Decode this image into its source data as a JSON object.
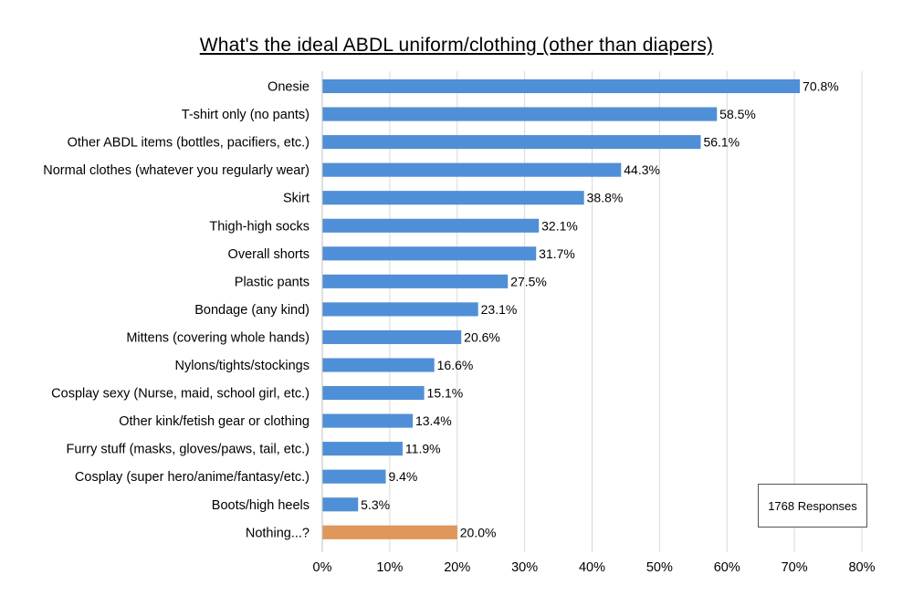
{
  "chart_data": {
    "type": "bar",
    "orientation": "horizontal",
    "title": "What's the ideal ABDL uniform/clothing (other than diapers)",
    "categories": [
      "Onesie",
      "T-shirt only (no pants)",
      "Other ABDL items (bottles, pacifiers, etc.)",
      "Normal clothes (whatever you regularly wear)",
      "Skirt",
      "Thigh-high socks",
      "Overall shorts",
      "Plastic pants",
      "Bondage (any kind)",
      "Mittens (covering whole hands)",
      "Nylons/tights/stockings",
      "Cosplay sexy (Nurse, maid, school girl, etc.)",
      "Other kink/fetish gear or clothing",
      "Furry stuff (masks, gloves/paws, tail, etc.)",
      "Cosplay (super hero/anime/fantasy/etc.)",
      "Boots/high heels",
      "Nothing...?"
    ],
    "values": [
      70.8,
      58.5,
      56.1,
      44.3,
      38.8,
      32.1,
      31.7,
      27.5,
      23.1,
      20.6,
      16.6,
      15.1,
      13.4,
      11.9,
      9.4,
      5.3,
      20.0
    ],
    "value_labels": [
      "70.8%",
      "58.5%",
      "56.1%",
      "44.3%",
      "38.8%",
      "32.1%",
      "31.7%",
      "27.5%",
      "23.1%",
      "20.6%",
      "16.6%",
      "15.1%",
      "13.4%",
      "11.9%",
      "9.4%",
      "5.3%",
      "20.0%"
    ],
    "bar_colors": [
      "#4f8fd8",
      "#4f8fd8",
      "#4f8fd8",
      "#4f8fd8",
      "#4f8fd8",
      "#4f8fd8",
      "#4f8fd8",
      "#4f8fd8",
      "#4f8fd8",
      "#4f8fd8",
      "#4f8fd8",
      "#4f8fd8",
      "#4f8fd8",
      "#4f8fd8",
      "#4f8fd8",
      "#4f8fd8",
      "#e0975a"
    ],
    "xlim": [
      0,
      80
    ],
    "x_ticks": [
      0,
      10,
      20,
      30,
      40,
      50,
      60,
      70,
      80
    ],
    "x_tick_labels": [
      "0%",
      "10%",
      "20%",
      "30%",
      "40%",
      "50%",
      "60%",
      "70%",
      "80%"
    ],
    "grid": true,
    "annotation": "1768 Responses"
  }
}
